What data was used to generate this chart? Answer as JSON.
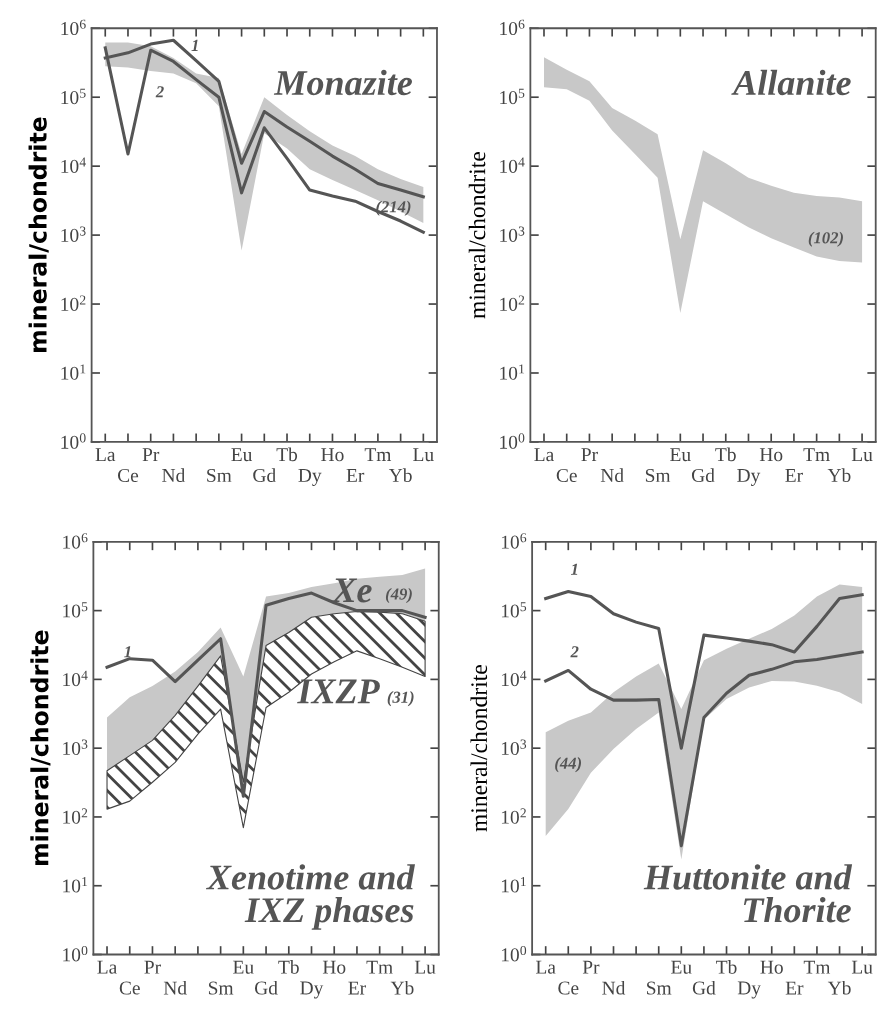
{
  "chart_data": [
    {
      "type": "line",
      "title": "Monazite",
      "ylabel": "mineral/chondrite",
      "log": true,
      "categories": [
        "La",
        "Ce",
        "Pr",
        "Nd",
        null,
        "Sm",
        "Eu",
        "Gd",
        "Tb",
        "Dy",
        "Ho",
        "Er",
        "Tm",
        "Yb",
        "Lu"
      ],
      "ylim": [
        1,
        1000000
      ],
      "yticks": [
        {
          "value": 1,
          "label": "10$^{0}$"
        },
        {
          "value": 10,
          "label": "10$^{1}$"
        },
        {
          "value": 100,
          "label": "10$^{2}$"
        },
        {
          "value": 1000,
          "label": "10$^{3}$"
        },
        {
          "value": 10000,
          "label": "10$^{4}$"
        },
        {
          "value": 100000,
          "label": "10$^{5}$"
        },
        {
          "value": 1000000,
          "label": "10$^{6}$"
        }
      ],
      "series": [
        {
          "type": "area",
          "color": "#c8c8c8",
          "values": [
            null,
            null,
            null,
            null,
            null,
            null,
            null,
            null,
            null,
            null,
            null,
            null,
            null,
            null,
            null
          ],
          "lower": [
            280000,
            270000,
            240000,
            220000,
            160000,
            74000,
            600,
            30000,
            18000,
            9000,
            6300,
            4500,
            3200,
            2200,
            1500
          ],
          "upper": [
            620000,
            620000,
            550000,
            370000,
            220000,
            190000,
            15000,
            100000,
            55000,
            32000,
            20000,
            14000,
            9000,
            6500,
            5000
          ]
        },
        {
          "color": "#555555",
          "values": [
            370000,
            440000,
            590000,
            670000,
            340000,
            170000,
            11000,
            62000,
            37000,
            23000,
            14000,
            9000,
            5600,
            4500,
            3600
          ]
        },
        {
          "color": "#555555",
          "values": [
            520000,
            15000,
            480000,
            330000,
            180000,
            100000,
            4100,
            36000,
            13000,
            4500,
            3700,
            3100,
            2200,
            1600,
            1100
          ]
        }
      ],
      "annotations": [
        "1",
        "2",
        "(214)"
      ]
    },
    {
      "type": "area",
      "title": "Allanite",
      "ylabel": "mineral/chondrite",
      "log": true,
      "categories": [
        "La",
        "Ce",
        "Pr",
        "Nd",
        null,
        "Sm",
        "Eu",
        "Gd",
        "Tb",
        "Dy",
        "Ho",
        "Er",
        "Tm",
        "Yb",
        "Lu"
      ],
      "ylim": [
        1,
        1000000
      ],
      "yticks": [
        {
          "value": 1,
          "label": "10$^{0}$"
        },
        {
          "value": 10,
          "label": "10$^{1}$"
        },
        {
          "value": 100,
          "label": "10$^{2}$"
        },
        {
          "value": 1000,
          "label": "10$^{3}$"
        },
        {
          "value": 10000,
          "label": "10$^{4}$"
        },
        {
          "value": 100000,
          "label": "10$^{5}$"
        },
        {
          "value": 1000000,
          "label": "10$^{6}$"
        }
      ],
      "series": [
        {
          "color": "#c8c8c8",
          "values": [
            null,
            null,
            null,
            null,
            null,
            null,
            null,
            null,
            null,
            null,
            null,
            null,
            null,
            null,
            null
          ],
          "lower": [
            140000,
            130000,
            89000,
            33000,
            15000,
            6800,
            74,
            3100,
            2000,
            1300,
            900,
            660,
            490,
            420,
            400
          ],
          "upper": [
            380000,
            250000,
            170000,
            70000,
            46000,
            29000,
            870,
            17000,
            11000,
            6800,
            5200,
            4100,
            3700,
            3500,
            3100
          ]
        }
      ],
      "annotations": [
        "(102)"
      ]
    },
    {
      "type": "line",
      "title": "Xenotime and\nIXZ phases",
      "ylabel": "mineral/chondrite",
      "log": true,
      "categories": [
        "La",
        "Ce",
        "Pr",
        "Nd",
        null,
        "Sm",
        "Eu",
        "Gd",
        "Tb",
        "Dy",
        "Ho",
        "Er",
        "Tm",
        "Yb",
        "Lu"
      ],
      "ylim": [
        1,
        1000000
      ],
      "yticks": [
        {
          "value": 1,
          "label": "10$^{0}$"
        },
        {
          "value": 10,
          "label": "10$^{1}$"
        },
        {
          "value": 100,
          "label": "10$^{2}$"
        },
        {
          "value": 1000,
          "label": "10$^{3}$"
        },
        {
          "value": 10000,
          "label": "10$^{4}$"
        },
        {
          "value": 100000,
          "label": "10$^{5}$"
        },
        {
          "value": 1000000,
          "label": "10$^{6}$"
        }
      ],
      "series": [
        {
          "type": "area",
          "color": "#c8c8c8",
          "values": [
            null,
            null,
            null,
            null,
            null,
            null,
            null,
            null,
            null,
            null,
            null,
            null,
            null,
            null,
            null
          ],
          "lower": [
            400,
            600,
            1000,
            1800,
            4000,
            10000,
            150,
            31000,
            47000,
            80000,
            90000,
            95000,
            100000,
            90000,
            70000
          ],
          "upper": [
            2800,
            5500,
            8000,
            13000,
            25000,
            57000,
            11000,
            160000,
            180000,
            220000,
            250000,
            290000,
            310000,
            330000,
            410000
          ]
        },
        {
          "type": "area",
          "color": "#444444",
          "values": [
            null,
            null,
            null,
            null,
            null,
            null,
            null,
            null,
            null,
            null,
            null,
            null,
            null,
            null,
            null
          ],
          "lower": [
            130,
            170,
            320,
            620,
            1600,
            3700,
            70,
            3900,
            6500,
            12000,
            18000,
            26000,
            20000,
            15000,
            11000
          ],
          "upper": [
            470,
            780,
            1300,
            3000,
            8000,
            22000,
            320,
            31000,
            48000,
            80000,
            90000,
            97000,
            95000,
            90000,
            70000
          ]
        },
        {
          "color": "#555555",
          "values": [
            15000,
            20000,
            19000,
            9300,
            19000,
            39000,
            200,
            120000,
            150000,
            180000,
            130000,
            100000,
            100000,
            100000,
            80000
          ]
        }
      ],
      "annotations": [
        "Xe",
        "(49)",
        "IXZP",
        "(31)",
        "1"
      ]
    },
    {
      "type": "line",
      "title": "Huttonite and\nThorite",
      "ylabel": "mineral/chondrite",
      "log": true,
      "categories": [
        "La",
        "Ce",
        "Pr",
        "Nd",
        null,
        "Sm",
        "Eu",
        "Gd",
        "Tb",
        "Dy",
        "Ho",
        "Er",
        "Tm",
        "Yb",
        "Lu"
      ],
      "ylim": [
        1,
        1000000
      ],
      "yticks": [
        {
          "value": 1,
          "label": "10$^{0}$"
        },
        {
          "value": 10,
          "label": "10$^{1}$"
        },
        {
          "value": 100,
          "label": "10$^{2}$"
        },
        {
          "value": 1000,
          "label": "10$^{3}$"
        },
        {
          "value": 10000,
          "label": "10$^{4}$"
        },
        {
          "value": 100000,
          "label": "10$^{5}$"
        },
        {
          "value": 1000000,
          "label": "10$^{6}$"
        }
      ],
      "series": [
        {
          "type": "area",
          "color": "#c8c8c8",
          "values": [
            null,
            null,
            null,
            null,
            null,
            null,
            null,
            null,
            null,
            null,
            null,
            null,
            null,
            null,
            null
          ],
          "lower": [
            53,
            130,
            440,
            970,
            1900,
            3300,
            24,
            2600,
            5200,
            7600,
            9500,
            9300,
            8100,
            6500,
            4400
          ],
          "upper": [
            1700,
            2500,
            3300,
            6500,
            11000,
            17000,
            3700,
            19000,
            28000,
            39000,
            54000,
            85000,
            160000,
            240000,
            220000
          ]
        },
        {
          "color": "#555555",
          "values": [
            150000,
            190000,
            160000,
            90000,
            68000,
            55000,
            1000,
            44000,
            40000,
            36000,
            32000,
            25000,
            59000,
            150000,
            170000
          ]
        },
        {
          "color": "#555555",
          "values": [
            9500,
            13500,
            7200,
            5000,
            5000,
            5100,
            38,
            2800,
            6300,
            11500,
            14000,
            18000,
            19500,
            22000,
            25000
          ]
        }
      ],
      "annotations": [
        "1",
        "2",
        "(44)"
      ]
    }
  ]
}
